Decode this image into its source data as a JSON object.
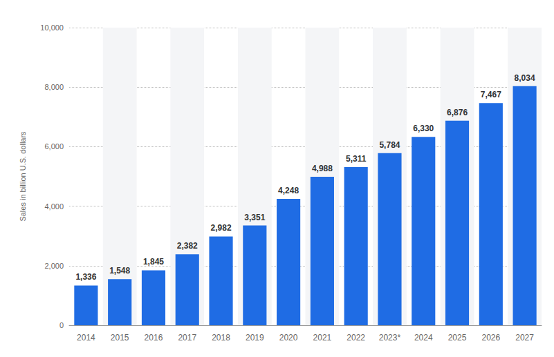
{
  "chart_data": {
    "type": "bar",
    "y_label": "Sales in billion U.S. dollars",
    "categories": [
      "2014",
      "2015",
      "2016",
      "2017",
      "2018",
      "2019",
      "2020",
      "2021",
      "2022",
      "2023*",
      "2024",
      "2025",
      "2026",
      "2027"
    ],
    "values": [
      1336,
      1548,
      1845,
      2382,
      2982,
      3351,
      4248,
      4988,
      5311,
      5784,
      6330,
      6876,
      7467,
      8034
    ],
    "value_labels": [
      "1,336",
      "1,548",
      "1,845",
      "2,382",
      "2,982",
      "3,351",
      "4,248",
      "4,988",
      "5,311",
      "5,784",
      "6,330",
      "6,876",
      "7,467",
      "8,034"
    ],
    "color": "#1f6ce4",
    "ylim": [
      0,
      10000
    ],
    "yticks": [
      0,
      {
        "value": 2000,
        "label": "2,000"
      },
      {
        "value": 4000,
        "label": "4,000"
      },
      {
        "value": 6000,
        "label": "6,000"
      },
      {
        "value": 8000,
        "label": "8,000"
      },
      {
        "value": 10000,
        "label": "10,000"
      }
    ],
    "grid": true,
    "data_labels": true
  }
}
